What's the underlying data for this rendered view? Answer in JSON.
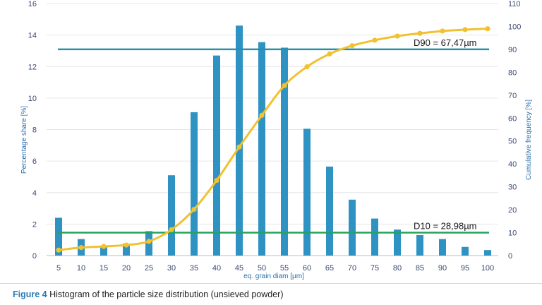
{
  "chart_data": {
    "type": "bar+line",
    "title": "",
    "xlabel": "eq. grain diam [µm]",
    "ylabel": "Percentage share [%]",
    "y2label": "Cumulative frequency [%]",
    "categories": [
      "5",
      "10",
      "15",
      "20",
      "25",
      "30",
      "35",
      "40",
      "45",
      "50",
      "55",
      "60",
      "65",
      "70",
      "75",
      "80",
      "85",
      "90",
      "95",
      "100"
    ],
    "ylim": [
      0,
      16
    ],
    "yticks": [
      0,
      2,
      4,
      6,
      8,
      10,
      12,
      14,
      16
    ],
    "y2lim": [
      0,
      110
    ],
    "y2ticks": [
      0,
      10,
      20,
      30,
      40,
      50,
      60,
      70,
      80,
      90,
      100,
      110
    ],
    "series": [
      {
        "name": "Percentage share",
        "axis": "left",
        "type": "bar",
        "color": "#2e93c3",
        "values": [
          2.4,
          1.05,
          0.6,
          0.75,
          1.55,
          5.1,
          9.1,
          12.7,
          14.6,
          13.55,
          13.2,
          8.05,
          5.65,
          3.55,
          2.35,
          1.65,
          1.3,
          1.05,
          0.55,
          0.35
        ]
      },
      {
        "name": "Cumulative frequency",
        "axis": "right",
        "type": "line",
        "color": "#f2c12e",
        "values": [
          2.4,
          3.5,
          4.0,
          4.6,
          6.2,
          11.3,
          20.2,
          32.8,
          47.4,
          61.2,
          74.2,
          82.4,
          88.0,
          91.6,
          94.0,
          95.8,
          97.0,
          98.0,
          98.6,
          99.0
        ]
      }
    ],
    "reference_lines": [
      {
        "label": "D90 = 67,47µm",
        "axis": "right",
        "value": 90,
        "color": "#2a8fa8"
      },
      {
        "label": "D10 = 28,98µm",
        "axis": "right",
        "value": 10,
        "color": "#25a35a"
      }
    ]
  },
  "caption": {
    "label": "Figure 4",
    "text": "Histogram of the particle size distribution (unsieved powder)"
  }
}
